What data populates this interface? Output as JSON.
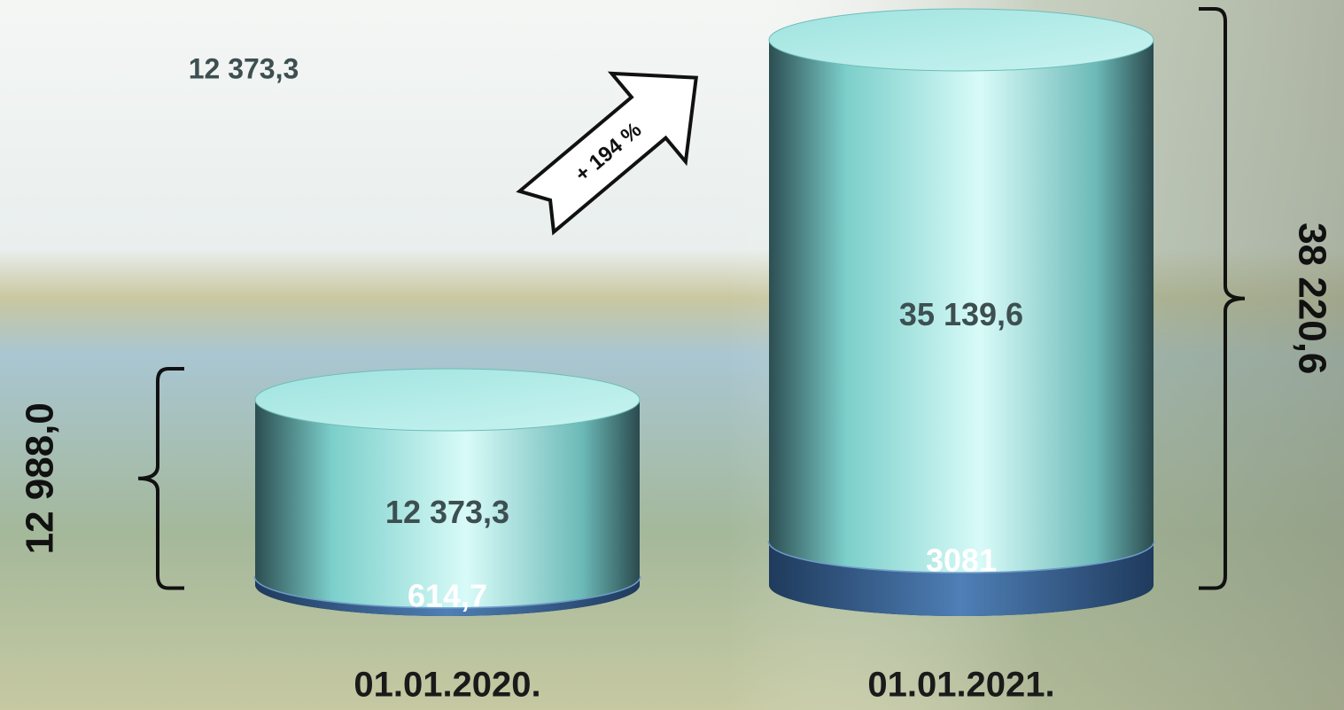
{
  "chart_data": {
    "type": "stacked-cylinder",
    "categories": [
      "01.01.2020.",
      "01.01.2021."
    ],
    "series": [
      {
        "color": "#3f6ea3",
        "values": [
          614.7,
          3081
        ],
        "value_labels": [
          "614,7",
          "3081"
        ]
      },
      {
        "color": "#7fd6d2",
        "values": [
          12373.3,
          35139.6
        ],
        "value_labels": [
          "12 373,3",
          "35 139,6"
        ]
      }
    ],
    "totals": {
      "values": [
        12988.0,
        38220.6
      ],
      "value_labels": [
        "12 988,0",
        "38 220,6"
      ]
    },
    "growth_label": "+ 194 %",
    "note": "12 373,3"
  }
}
